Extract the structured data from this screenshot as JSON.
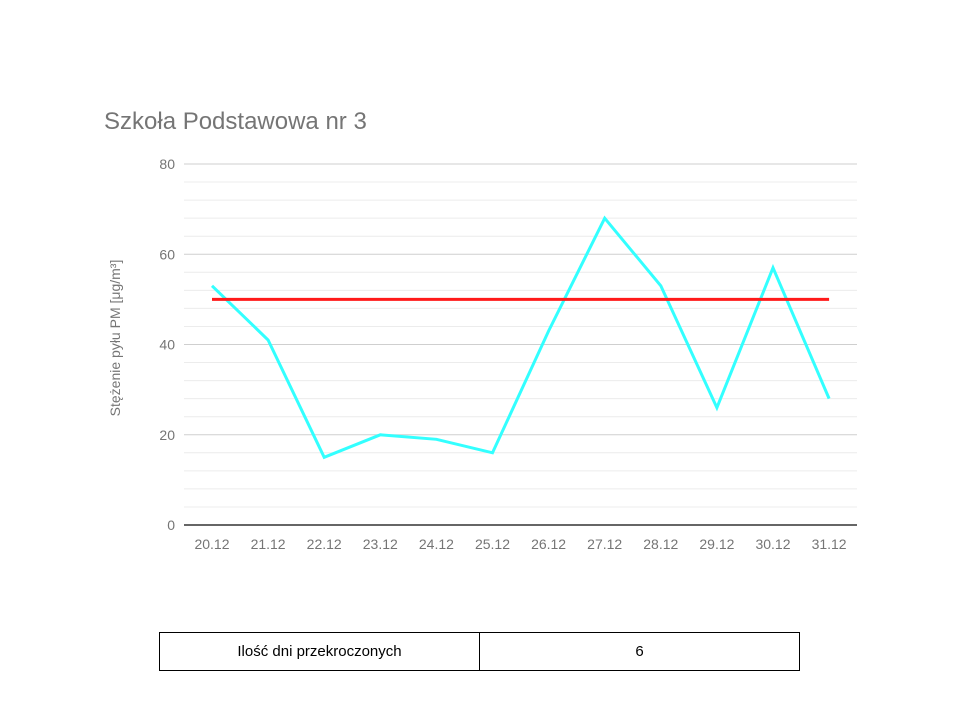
{
  "chart_data": {
    "type": "line",
    "title": "Szkoła Podstawowa nr 3",
    "xlabel": "",
    "ylabel": "Stężenie pyłu PM [μg/m³]",
    "categories": [
      "20.12",
      "21.12",
      "22.12",
      "23.12",
      "24.12",
      "25.12",
      "26.12",
      "27.12",
      "28.12",
      "29.12",
      "30.12",
      "31.12"
    ],
    "ylim": [
      0,
      80
    ],
    "yticks": [
      "0",
      "20",
      "40",
      "60",
      "80"
    ],
    "grid": true,
    "series": [
      {
        "values": [
          53,
          41,
          15,
          20,
          19,
          16,
          43,
          68,
          53,
          26,
          57,
          28
        ],
        "color": "#33ffff"
      },
      {
        "values": [
          50,
          50,
          50,
          50,
          50,
          50,
          50,
          50,
          50,
          50,
          50,
          50
        ],
        "color": "#ff1a1a"
      }
    ]
  },
  "summary": {
    "label": "Ilość dni przekroczonych",
    "value": "6"
  }
}
